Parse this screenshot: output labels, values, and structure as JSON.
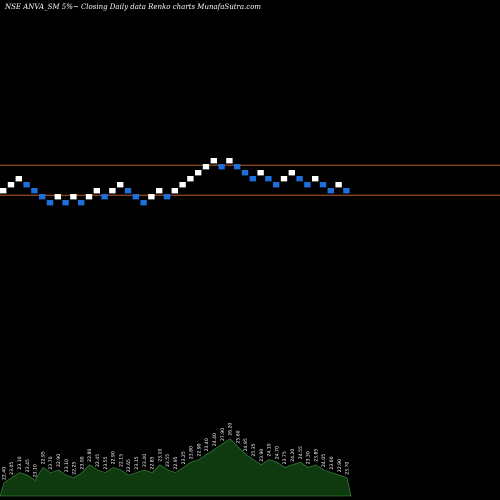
{
  "header": {
    "text": "NSE ANVA_SM 5%~  Closing Daily data  Renko  charts MunafaSutra.com"
  },
  "colors": {
    "background": "#000000",
    "up_brick": "#ffffff",
    "down_brick": "#1e6fd9",
    "reference_line": "#b85a2a",
    "volume_area": "#0f3a0f",
    "volume_outline": "#3f8f3f"
  },
  "chart_data": {
    "type": "renko",
    "title": "NSE ANVA_SM 5%~  Closing Daily data  Renko  charts MunafaSutra.com",
    "bricks": [
      {
        "level": 13,
        "dir": "up"
      },
      {
        "level": 14,
        "dir": "up"
      },
      {
        "level": 15,
        "dir": "up"
      },
      {
        "level": 14,
        "dir": "down"
      },
      {
        "level": 13,
        "dir": "down"
      },
      {
        "level": 12,
        "dir": "down"
      },
      {
        "level": 11,
        "dir": "down"
      },
      {
        "level": 12,
        "dir": "up"
      },
      {
        "level": 11,
        "dir": "down"
      },
      {
        "level": 12,
        "dir": "up"
      },
      {
        "level": 11,
        "dir": "down"
      },
      {
        "level": 12,
        "dir": "up"
      },
      {
        "level": 13,
        "dir": "up"
      },
      {
        "level": 12,
        "dir": "down"
      },
      {
        "level": 13,
        "dir": "up"
      },
      {
        "level": 14,
        "dir": "up"
      },
      {
        "level": 13,
        "dir": "down"
      },
      {
        "level": 12,
        "dir": "down"
      },
      {
        "level": 11,
        "dir": "down"
      },
      {
        "level": 12,
        "dir": "up"
      },
      {
        "level": 13,
        "dir": "up"
      },
      {
        "level": 12,
        "dir": "down"
      },
      {
        "level": 13,
        "dir": "up"
      },
      {
        "level": 14,
        "dir": "up"
      },
      {
        "level": 15,
        "dir": "up"
      },
      {
        "level": 16,
        "dir": "up"
      },
      {
        "level": 17,
        "dir": "up"
      },
      {
        "level": 18,
        "dir": "up"
      },
      {
        "level": 17,
        "dir": "down"
      },
      {
        "level": 18,
        "dir": "up"
      },
      {
        "level": 17,
        "dir": "down"
      },
      {
        "level": 16,
        "dir": "down"
      },
      {
        "level": 15,
        "dir": "down"
      },
      {
        "level": 16,
        "dir": "up"
      },
      {
        "level": 15,
        "dir": "down"
      },
      {
        "level": 14,
        "dir": "down"
      },
      {
        "level": 15,
        "dir": "up"
      },
      {
        "level": 16,
        "dir": "up"
      },
      {
        "level": 15,
        "dir": "down"
      },
      {
        "level": 14,
        "dir": "down"
      },
      {
        "level": 15,
        "dir": "up"
      },
      {
        "level": 14,
        "dir": "down"
      },
      {
        "level": 13,
        "dir": "down"
      },
      {
        "level": 14,
        "dir": "up"
      },
      {
        "level": 13,
        "dir": "down"
      }
    ],
    "reference_lines": [
      {
        "level": 17.8
      },
      {
        "level": 12.8
      }
    ],
    "volume": {
      "values": [
        5,
        7,
        9,
        8,
        6,
        11,
        9,
        10,
        8,
        7,
        9,
        12,
        10,
        9,
        11,
        10,
        8,
        9,
        10,
        9,
        12,
        10,
        9,
        11,
        13,
        14,
        16,
        18,
        20,
        22,
        19,
        16,
        14,
        12,
        14,
        13,
        11,
        12,
        13,
        11,
        12,
        10,
        9,
        8,
        7
      ],
      "labels": [
        "22.40",
        "23.05",
        "23.10",
        "23.45",
        "23.10",
        "22.95",
        "23.70",
        "22.90",
        "23.10",
        "22.25",
        "23.00",
        "22.80",
        "22.45",
        "23.55",
        "22.90",
        "22.15",
        "22.65",
        "23.15",
        "23.40",
        "22.85",
        "23.10",
        "23.55",
        "22.95",
        "23.25",
        "23.80",
        "22.90",
        "23.40",
        "24.40",
        "27.90",
        "26.20",
        "25.60",
        "24.95",
        "25.35",
        "23.90",
        "24.10",
        "24.70",
        "23.75",
        "24.20",
        "24.55",
        "23.30",
        "23.85",
        "24.05",
        "23.60",
        "22.90",
        "23.70"
      ]
    }
  }
}
